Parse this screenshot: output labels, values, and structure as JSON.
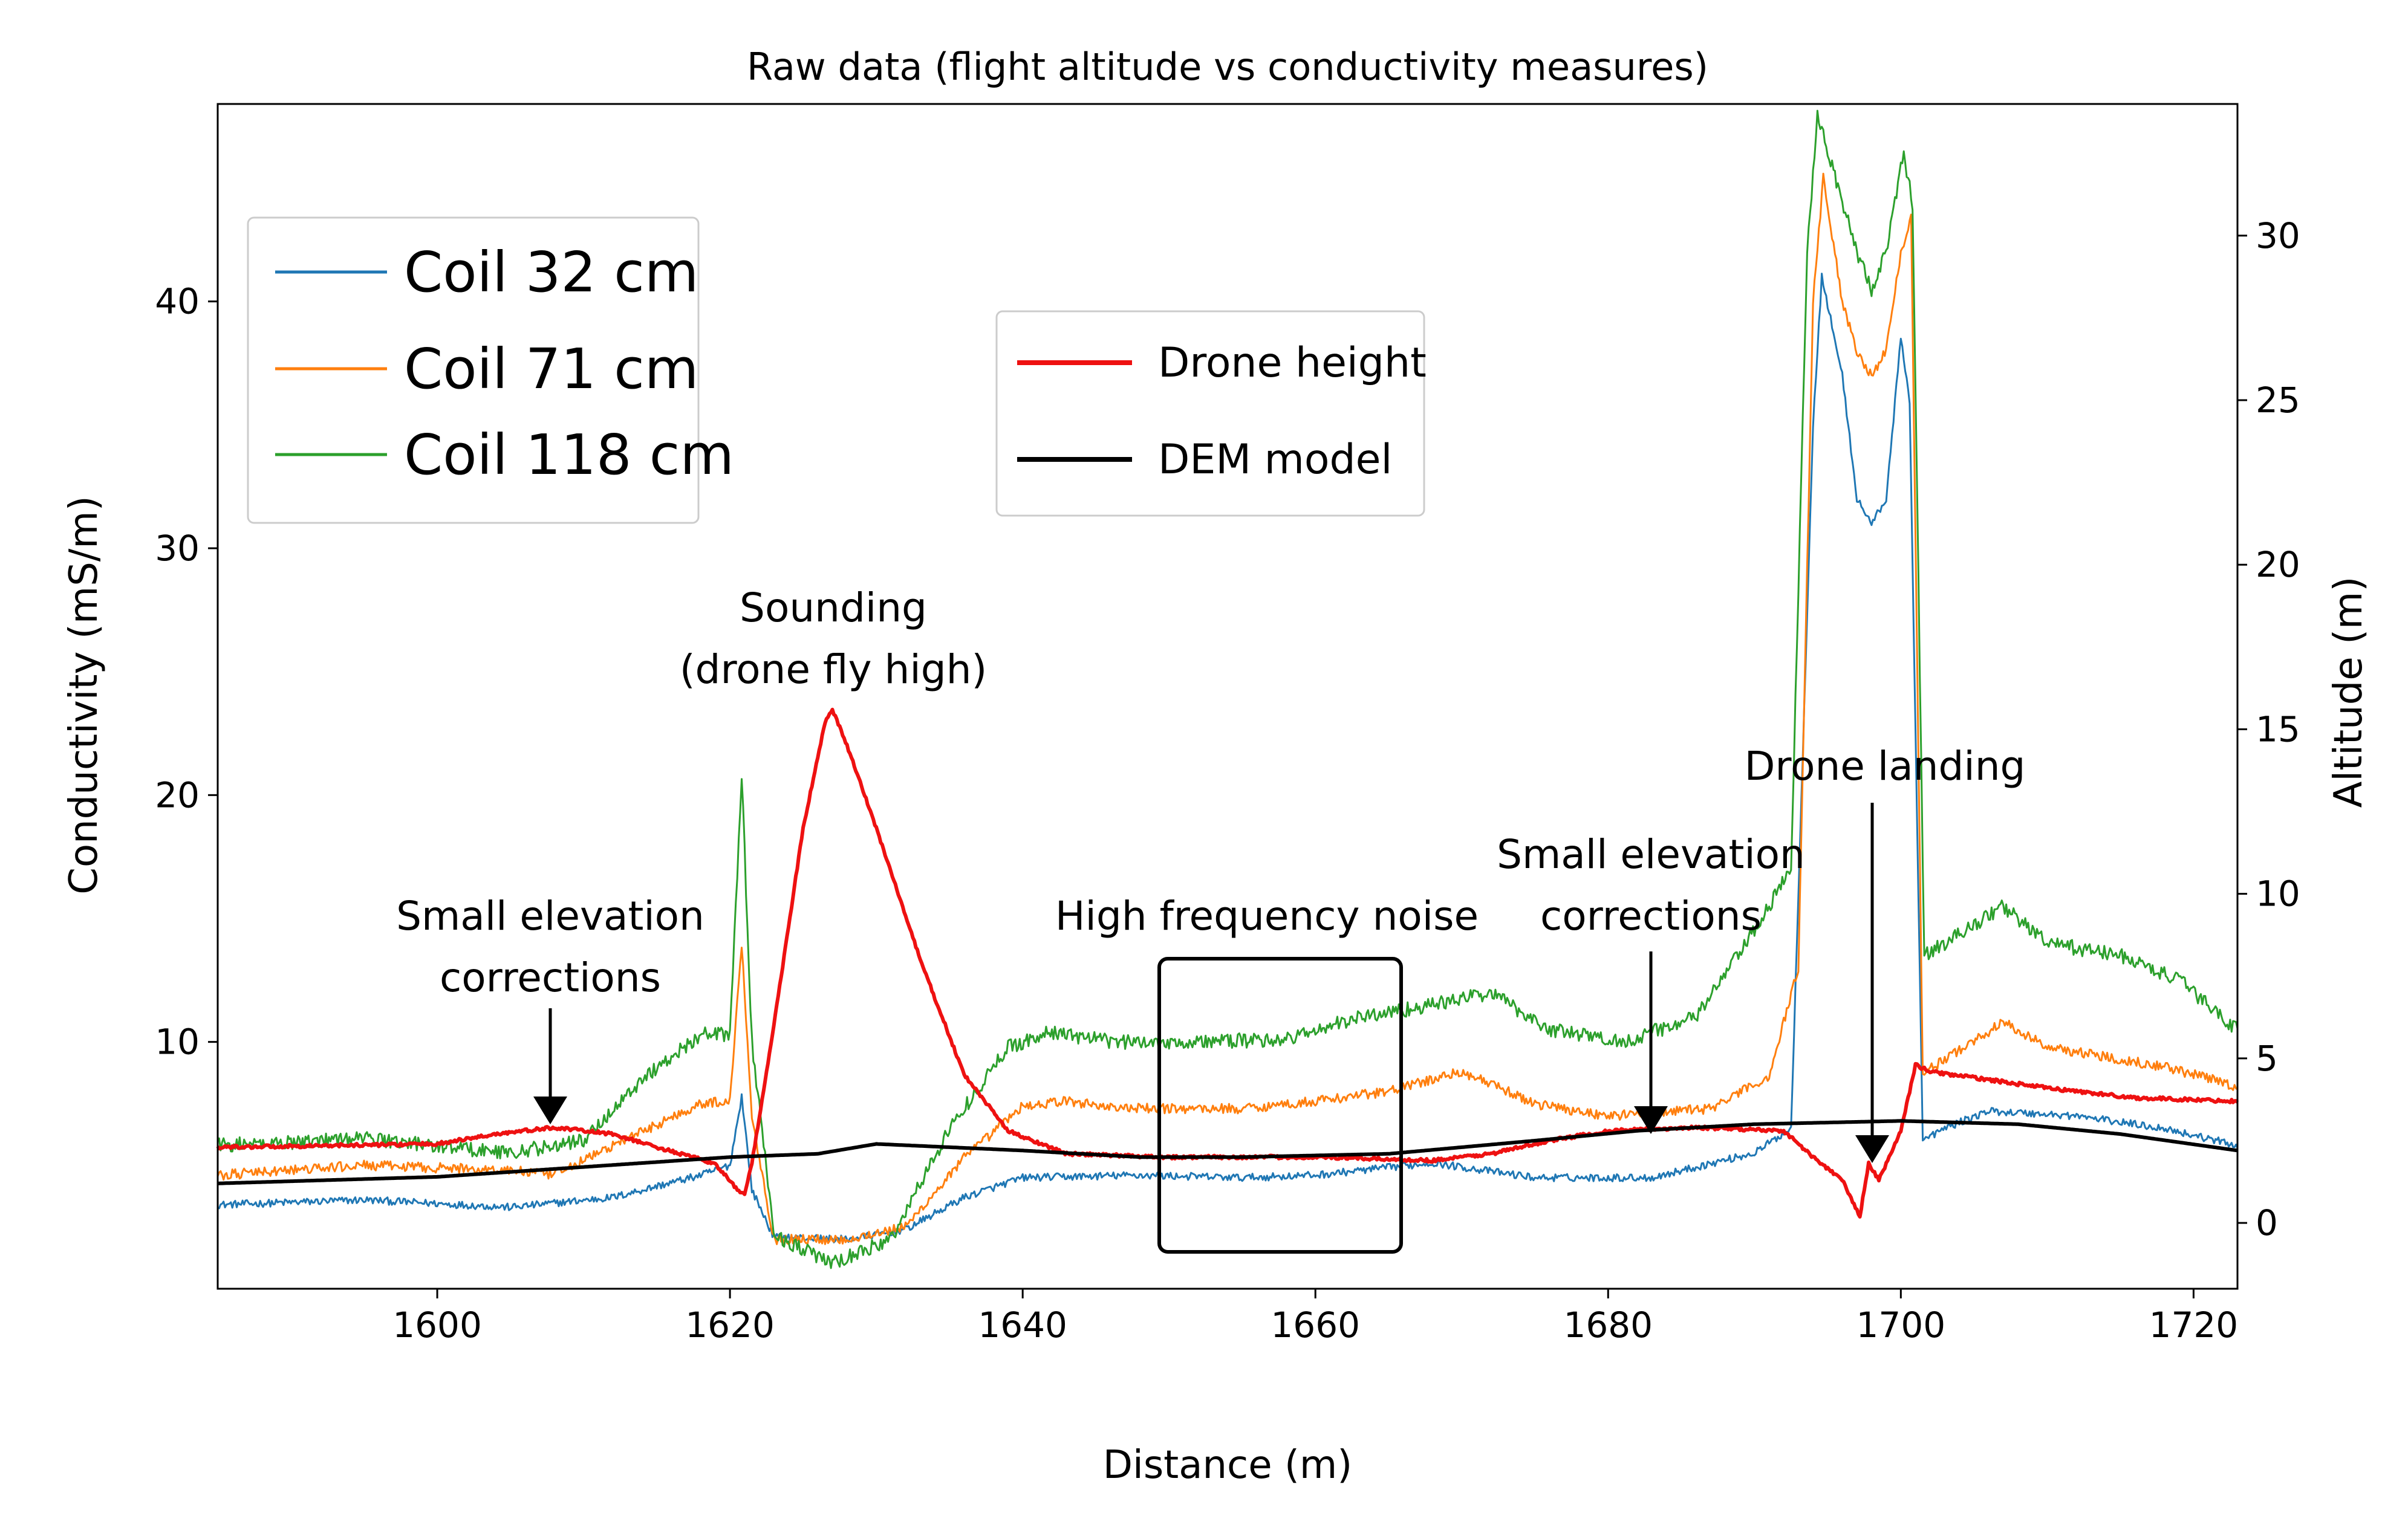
{
  "chart_data": {
    "type": "line",
    "title": "Raw data (flight altitude vs conductivity measures)",
    "xlabel": "Distance (m)",
    "ylabel_left": "Conductivity (mS/m)",
    "ylabel_right": "Altitude (m)",
    "xlim": [
      1585,
      1723
    ],
    "ylim_left": [
      0,
      48
    ],
    "ylim_right": [
      -2,
      34
    ],
    "x_ticks": [
      1600,
      1620,
      1640,
      1660,
      1680,
      1700,
      1720
    ],
    "y_ticks_left": [
      10,
      20,
      30,
      40
    ],
    "y_ticks_right": [
      0,
      5,
      10,
      15,
      20,
      25,
      30
    ],
    "grid": false,
    "colors": {
      "coil32": "#1f77b4",
      "coil71": "#ff7f0e",
      "coil118": "#2ca02c",
      "drone": "#ee1111",
      "dem": "#000000"
    },
    "legend_left": {
      "placement": "upper-left",
      "entries": [
        "Coil 32 cm",
        "Coil 71 cm",
        "Coil 118 cm"
      ]
    },
    "legend_right": {
      "placement": "upper-center",
      "entries": [
        "Drone height",
        "DEM model"
      ]
    },
    "series": [
      {
        "name": "Coil 32 cm",
        "axis": "left",
        "key": "coil32",
        "noise": 0.15,
        "points": [
          [
            1585,
            3.4
          ],
          [
            1595,
            3.6
          ],
          [
            1605,
            3.3
          ],
          [
            1612,
            3.7
          ],
          [
            1618,
            4.6
          ],
          [
            1620,
            5.0
          ],
          [
            1620.8,
            7.8
          ],
          [
            1621.5,
            4.0
          ],
          [
            1623,
            2.1
          ],
          [
            1628,
            2.0
          ],
          [
            1632,
            2.4
          ],
          [
            1636,
            3.7
          ],
          [
            1640,
            4.5
          ],
          [
            1648,
            4.6
          ],
          [
            1655,
            4.5
          ],
          [
            1660,
            4.6
          ],
          [
            1668,
            5.1
          ],
          [
            1675,
            4.5
          ],
          [
            1683,
            4.5
          ],
          [
            1690,
            5.5
          ],
          [
            1692.5,
            6.5
          ],
          [
            1694,
            35
          ],
          [
            1694.6,
            41
          ],
          [
            1696,
            37
          ],
          [
            1697,
            32
          ],
          [
            1698,
            31
          ],
          [
            1699,
            32
          ],
          [
            1700,
            38.5
          ],
          [
            1700.6,
            36
          ],
          [
            1701.5,
            6.0
          ],
          [
            1703,
            6.5
          ],
          [
            1706,
            7.2
          ],
          [
            1712,
            7.0
          ],
          [
            1718,
            6.5
          ],
          [
            1723,
            5.8
          ]
        ]
      },
      {
        "name": "Coil 71 cm",
        "axis": "left",
        "key": "coil71",
        "noise": 0.2,
        "points": [
          [
            1585,
            4.6
          ],
          [
            1595,
            5.0
          ],
          [
            1605,
            4.8
          ],
          [
            1608,
            4.6
          ],
          [
            1612,
            5.8
          ],
          [
            1618,
            7.5
          ],
          [
            1620,
            7.6
          ],
          [
            1620.8,
            14.0
          ],
          [
            1621.5,
            7.0
          ],
          [
            1623,
            2.0
          ],
          [
            1628,
            2.0
          ],
          [
            1632,
            2.5
          ],
          [
            1636,
            5.3
          ],
          [
            1640,
            7.4
          ],
          [
            1643,
            7.6
          ],
          [
            1647,
            7.3
          ],
          [
            1655,
            7.3
          ],
          [
            1660,
            7.6
          ],
          [
            1665,
            8.0
          ],
          [
            1670,
            8.8
          ],
          [
            1675,
            7.5
          ],
          [
            1680,
            7.0
          ],
          [
            1687,
            7.3
          ],
          [
            1691,
            8.6
          ],
          [
            1693,
            13
          ],
          [
            1694,
            40
          ],
          [
            1694.7,
            45
          ],
          [
            1696,
            40
          ],
          [
            1697,
            38
          ],
          [
            1698,
            37
          ],
          [
            1699,
            38
          ],
          [
            1700,
            42
          ],
          [
            1700.7,
            43.5
          ],
          [
            1701.5,
            8.7
          ],
          [
            1703,
            9.3
          ],
          [
            1707,
            10.8
          ],
          [
            1710,
            9.8
          ],
          [
            1714,
            9.4
          ],
          [
            1718,
            9.0
          ],
          [
            1723,
            8.2
          ]
        ]
      },
      {
        "name": "Coil 118 cm",
        "axis": "left",
        "key": "coil118",
        "noise": 0.3,
        "points": [
          [
            1585,
            5.8
          ],
          [
            1595,
            6.1
          ],
          [
            1605,
            5.5
          ],
          [
            1610,
            6.0
          ],
          [
            1614,
            8.5
          ],
          [
            1618,
            10.3
          ],
          [
            1620,
            10.3
          ],
          [
            1620.8,
            20.8
          ],
          [
            1621.5,
            10.0
          ],
          [
            1623,
            2.2
          ],
          [
            1627,
            1.0
          ],
          [
            1631,
            2.0
          ],
          [
            1635,
            6.5
          ],
          [
            1639,
            9.8
          ],
          [
            1642,
            10.4
          ],
          [
            1646,
            10.0
          ],
          [
            1652,
            10.0
          ],
          [
            1658,
            10.1
          ],
          [
            1663,
            11.0
          ],
          [
            1668,
            11.5
          ],
          [
            1672,
            12.0
          ],
          [
            1676,
            10.5
          ],
          [
            1681,
            10.0
          ],
          [
            1686,
            11.0
          ],
          [
            1690,
            14.5
          ],
          [
            1692.5,
            17.0
          ],
          [
            1693.6,
            42
          ],
          [
            1694.3,
            47.7
          ],
          [
            1696,
            44
          ],
          [
            1697,
            42
          ],
          [
            1698,
            40.5
          ],
          [
            1699,
            42
          ],
          [
            1700.2,
            46
          ],
          [
            1700.8,
            44
          ],
          [
            1701.6,
            13.5
          ],
          [
            1703,
            14.0
          ],
          [
            1707,
            15.5
          ],
          [
            1710,
            14.0
          ],
          [
            1715,
            13.5
          ],
          [
            1719,
            12.5
          ],
          [
            1723,
            10.5
          ]
        ]
      },
      {
        "name": "Drone height",
        "axis": "right",
        "key": "drone",
        "noise": 0.05,
        "points": [
          [
            1585,
            2.3
          ],
          [
            1600,
            2.4
          ],
          [
            1604,
            2.7
          ],
          [
            1608,
            2.9
          ],
          [
            1612,
            2.7
          ],
          [
            1615,
            2.3
          ],
          [
            1619,
            1.8
          ],
          [
            1620.5,
            1.0
          ],
          [
            1621,
            0.9
          ],
          [
            1621.5,
            1.8
          ],
          [
            1623,
            6.0
          ],
          [
            1625,
            12.0
          ],
          [
            1626.5,
            15.2
          ],
          [
            1627,
            15.6
          ],
          [
            1628,
            14.5
          ],
          [
            1630,
            12.0
          ],
          [
            1633,
            8.0
          ],
          [
            1636,
            4.5
          ],
          [
            1639,
            2.8
          ],
          [
            1643,
            2.1
          ],
          [
            1650,
            2.0
          ],
          [
            1660,
            2.0
          ],
          [
            1668,
            1.9
          ],
          [
            1672,
            2.1
          ],
          [
            1676,
            2.5
          ],
          [
            1680,
            2.8
          ],
          [
            1686,
            2.9
          ],
          [
            1692,
            2.8
          ],
          [
            1694,
            2.0
          ],
          [
            1696,
            1.3
          ],
          [
            1697.2,
            0.2
          ],
          [
            1697.8,
            1.8
          ],
          [
            1698.5,
            1.3
          ],
          [
            1700,
            2.8
          ],
          [
            1701,
            4.8
          ],
          [
            1702,
            4.6
          ],
          [
            1710,
            4.1
          ],
          [
            1716,
            3.8
          ],
          [
            1723,
            3.7
          ]
        ]
      },
      {
        "name": "DEM model",
        "axis": "right",
        "key": "dem",
        "noise": 0,
        "points": [
          [
            1585,
            1.2
          ],
          [
            1600,
            1.4
          ],
          [
            1610,
            1.7
          ],
          [
            1620,
            2.0
          ],
          [
            1626,
            2.1
          ],
          [
            1630,
            2.4
          ],
          [
            1640,
            2.2
          ],
          [
            1648,
            2.0
          ],
          [
            1655,
            2.0
          ],
          [
            1665,
            2.1
          ],
          [
            1675,
            2.5
          ],
          [
            1682,
            2.8
          ],
          [
            1690,
            3.0
          ],
          [
            1700,
            3.1
          ],
          [
            1708,
            3.0
          ],
          [
            1715,
            2.7
          ],
          [
            1723,
            2.2
          ]
        ]
      }
    ],
    "annotations": [
      {
        "key": "small1",
        "lines": [
          "Small elevation",
          "corrections"
        ]
      },
      {
        "key": "sounding",
        "lines": [
          "Sounding",
          "(drone fly high)"
        ]
      },
      {
        "key": "noise",
        "lines": [
          "High frequency noise"
        ]
      },
      {
        "key": "small2",
        "lines": [
          "Small elevation",
          "corrections"
        ]
      },
      {
        "key": "landing",
        "lines": [
          "Drone landing"
        ]
      }
    ]
  }
}
